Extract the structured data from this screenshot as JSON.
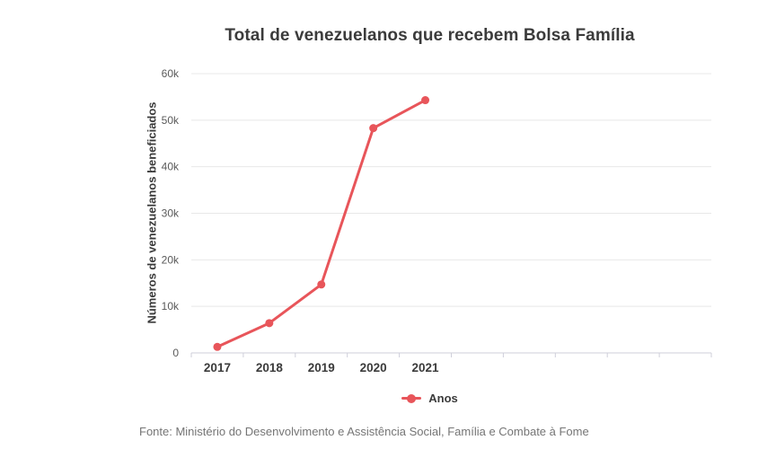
{
  "chart_data": {
    "type": "line",
    "title": "Total de venezuelanos que recebem Bolsa Família",
    "xlabel": "",
    "ylabel": "Números de venezuelanos beneficiados",
    "categories": [
      "2017",
      "2018",
      "2019",
      "2020",
      "2021"
    ],
    "values": [
      1300,
      6400,
      14700,
      48300,
      54300
    ],
    "series_name": "Anos",
    "ylim": [
      0,
      60000
    ],
    "ytick_values": [
      0,
      10000,
      20000,
      30000,
      40000,
      50000,
      60000
    ],
    "ytick_labels": [
      "0",
      "10k",
      "20k",
      "30k",
      "40k",
      "50k",
      "60k"
    ],
    "grid": "horizontal",
    "legend_position": "bottom",
    "x_bands": 10,
    "line_color": "#e8555a",
    "grid_color": "#e8e8e8",
    "axis_color": "#cfcfda",
    "tick_label_color": "#5a5a5a",
    "category_label_color": "#3b3b3b"
  },
  "legend": {
    "label": "Anos"
  },
  "footer": {
    "source": "Fonte: Ministério do Desenvolvimento e Assistência Social, Família e Combate à Fome"
  }
}
